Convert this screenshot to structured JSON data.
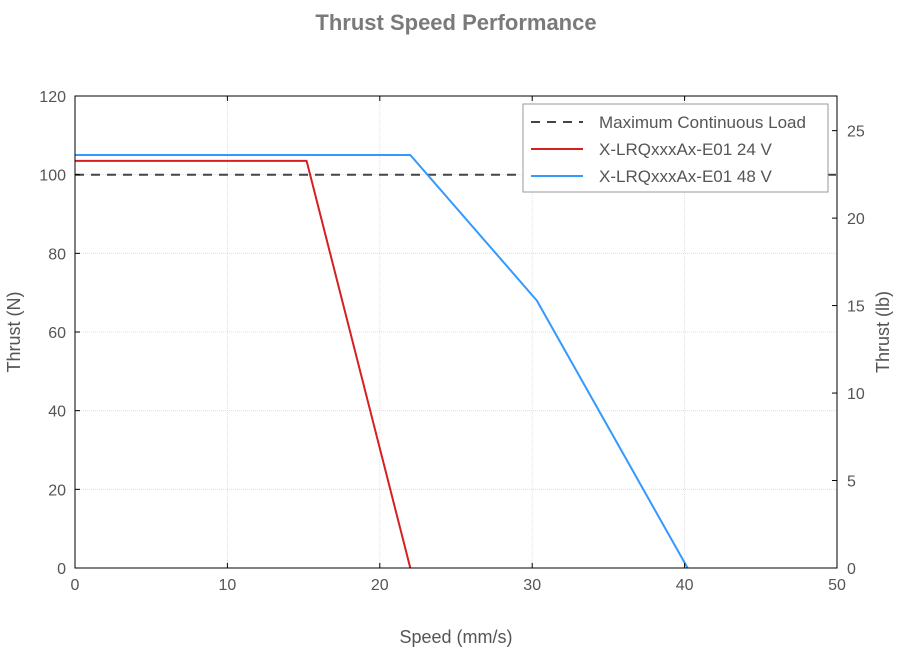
{
  "chart_data": {
    "type": "line",
    "title": "Thrust Speed Performance",
    "xlabel": "Speed (mm/s)",
    "ylabel": "Thrust (N)",
    "y2label": "Thrust (lb)",
    "xlim": [
      0,
      50
    ],
    "ylim": [
      0,
      120
    ],
    "y2lim": [
      0,
      26.98
    ],
    "xticks": [
      "0",
      "10",
      "20",
      "30",
      "40",
      "50"
    ],
    "yticks": [
      "0",
      "20",
      "40",
      "60",
      "80",
      "100",
      "120"
    ],
    "y2ticks": [
      "0",
      "5",
      "10",
      "15",
      "20",
      "25"
    ],
    "grid": true,
    "legend_position": "top-right",
    "series": [
      {
        "name": "Maximum Continuous Load",
        "color": "#444444",
        "dash": true,
        "x": [
          0,
          50
        ],
        "y": [
          100,
          100
        ]
      },
      {
        "name": "X-LRQxxxAx-E01 24 V",
        "color": "#d42020",
        "dash": false,
        "x": [
          0,
          15.2,
          22
        ],
        "y": [
          103.5,
          103.5,
          0
        ]
      },
      {
        "name": "X-LRQxxxAx-E01 48 V",
        "color": "#3399ff",
        "dash": false,
        "x": [
          0,
          22,
          30.3,
          40.2
        ],
        "y": [
          105,
          105,
          68,
          0
        ]
      }
    ]
  }
}
